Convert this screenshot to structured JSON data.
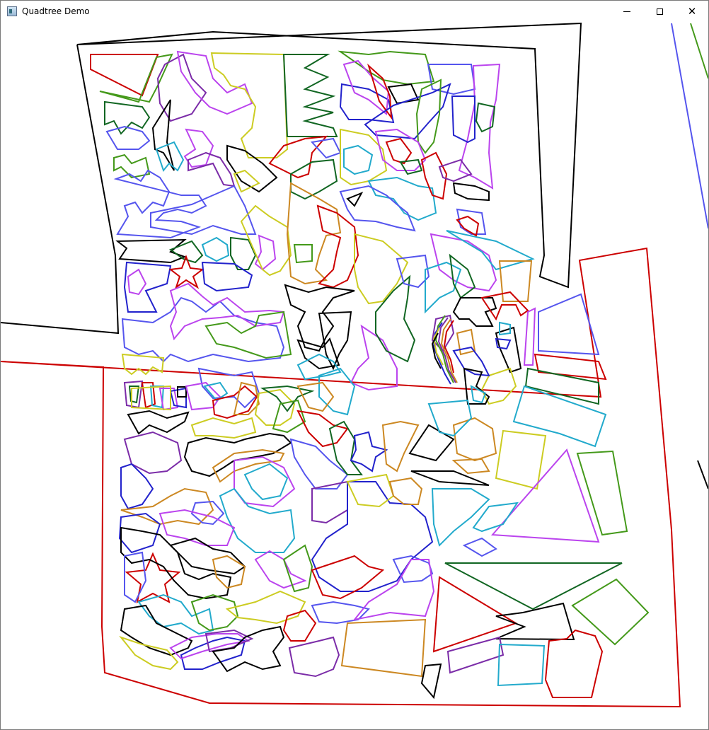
{
  "window": {
    "title": "Quadtree Demo",
    "icon": "app-window-icon",
    "buttons": {
      "minimize_icon": "minimize-icon",
      "maximize_icon": "maximize-icon",
      "close_glyph": "✕"
    }
  },
  "palette": {
    "black": "#000000",
    "red": "#cc0000",
    "blue": "#2222cc",
    "violet": "#5555ee",
    "purple": "#7b2ca8",
    "magenta": "#bb44ee",
    "cyan": "#22aacc",
    "green": "#116622",
    "lime": "#44991a",
    "olive": "#cccc22",
    "orange": "#cc8822"
  }
}
